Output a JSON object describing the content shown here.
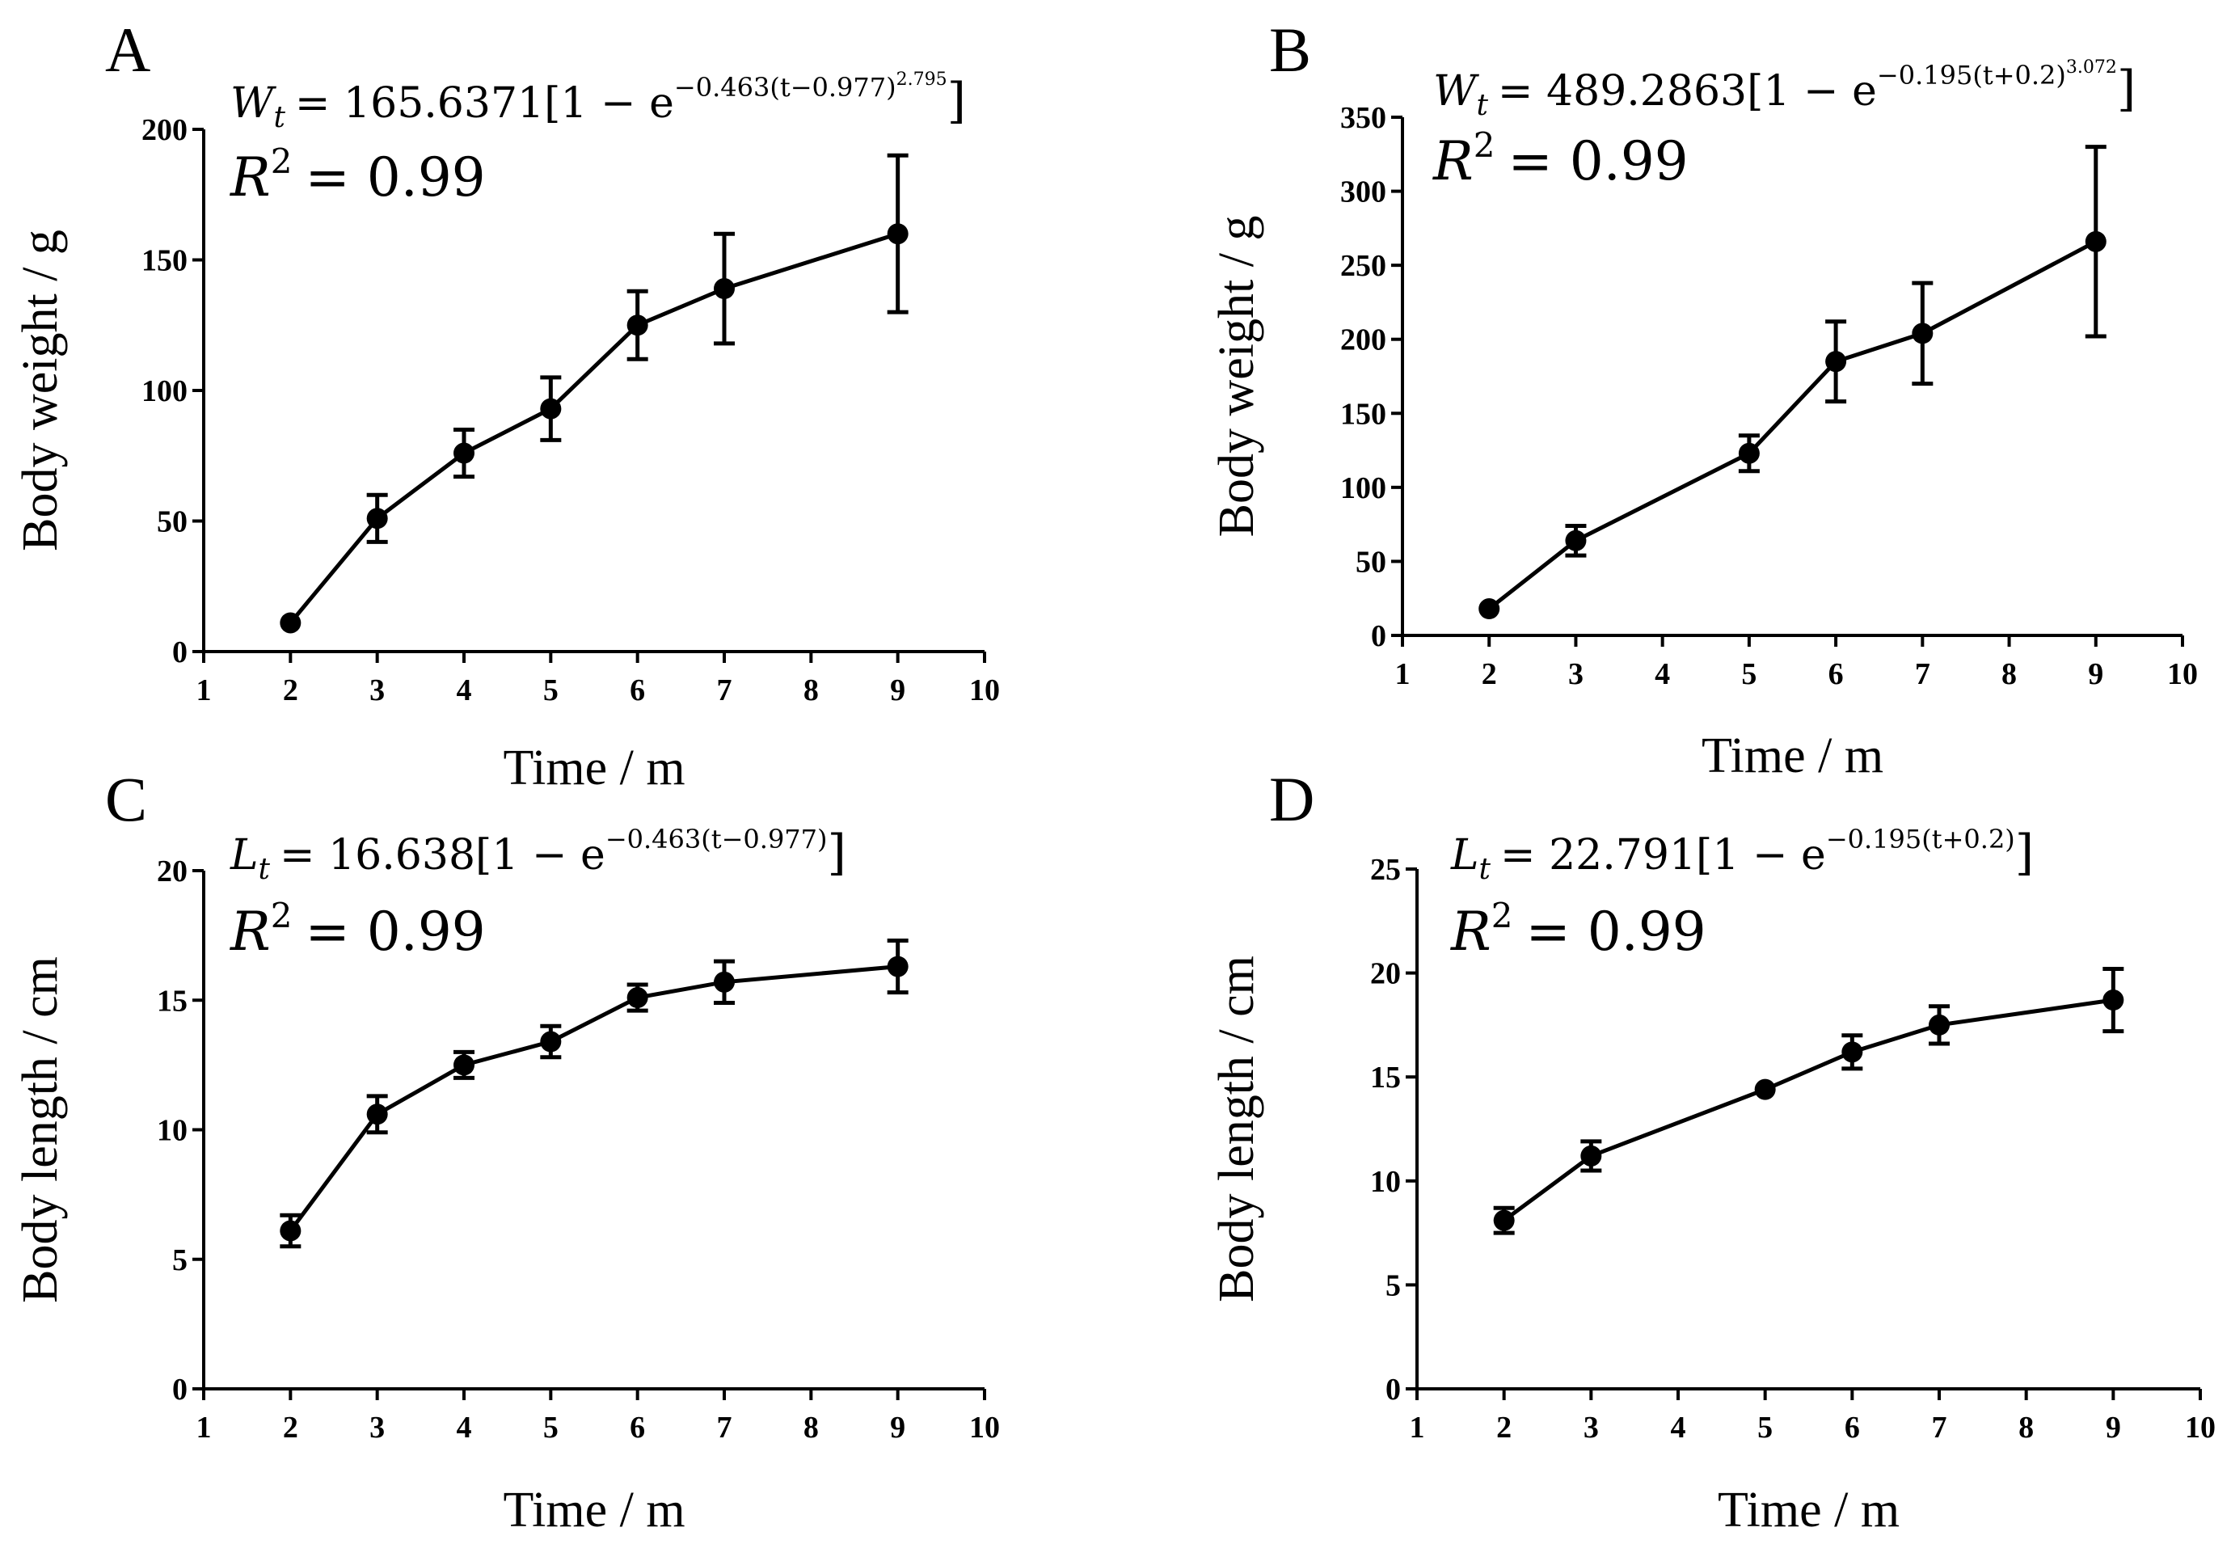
{
  "chart_data": [
    {
      "type": "line",
      "panel": "A",
      "title": "",
      "equation": {
        "lhs_symbol": "W",
        "lhs_sub": "t",
        "main": "= 165.6371[1 − e",
        "exponent": "−0.463(t−0.977)",
        "exponent_power": "2.795",
        "close": "]"
      },
      "r2": {
        "symbol": "R",
        "power": "2",
        "value": "= 0.99"
      },
      "xlabel": "Time / m",
      "ylabel": "Body weight / g",
      "xlim": [
        1,
        10
      ],
      "ylim": [
        0,
        200
      ],
      "xticks": [
        1,
        2,
        3,
        4,
        5,
        6,
        7,
        8,
        9,
        10
      ],
      "yticks": [
        0,
        50,
        100,
        150,
        200
      ],
      "grid": false,
      "series": [
        {
          "name": "Body weight",
          "x": [
            2,
            3,
            4,
            5,
            6,
            7,
            9
          ],
          "values": [
            11,
            51,
            76,
            93,
            125,
            139,
            160
          ],
          "errors": [
            0,
            9,
            9,
            12,
            13,
            21,
            30
          ]
        }
      ]
    },
    {
      "type": "line",
      "panel": "B",
      "title": "",
      "equation": {
        "lhs_symbol": "W",
        "lhs_sub": "t",
        "main": "= 489.2863[1 − e",
        "exponent": "−0.195(t+0.2)",
        "exponent_power": "3.072",
        "close": "]"
      },
      "r2": {
        "symbol": "R",
        "power": "2",
        "value": "= 0.99"
      },
      "xlabel": "Time / m",
      "ylabel": "Body weight / g",
      "xlim": [
        1,
        10
      ],
      "ylim": [
        0,
        350
      ],
      "xticks": [
        1,
        2,
        3,
        4,
        5,
        6,
        7,
        8,
        9,
        10
      ],
      "yticks": [
        0,
        50,
        100,
        150,
        200,
        250,
        300,
        350
      ],
      "grid": false,
      "series": [
        {
          "name": "Body weight",
          "x": [
            2,
            3,
            5,
            6,
            7,
            9
          ],
          "values": [
            18,
            64,
            123,
            185,
            204,
            266
          ],
          "errors": [
            0,
            10,
            12,
            27,
            34,
            64
          ]
        }
      ]
    },
    {
      "type": "line",
      "panel": "C",
      "title": "",
      "equation": {
        "lhs_symbol": "L",
        "lhs_sub": "t",
        "main": "= 16.638[1 − e",
        "exponent": "−0.463(t−0.977)",
        "exponent_power": "",
        "close": "]"
      },
      "r2": {
        "symbol": "R",
        "power": "2",
        "value": "= 0.99"
      },
      "xlabel": "Time / m",
      "ylabel": "Body length / cm",
      "xlim": [
        1,
        10
      ],
      "ylim": [
        0,
        20
      ],
      "xticks": [
        1,
        2,
        3,
        4,
        5,
        6,
        7,
        8,
        9,
        10
      ],
      "yticks": [
        0,
        5,
        10,
        15,
        20
      ],
      "grid": false,
      "series": [
        {
          "name": "Body length",
          "x": [
            2,
            3,
            4,
            5,
            6,
            7,
            9
          ],
          "values": [
            6.1,
            10.6,
            12.5,
            13.4,
            15.1,
            15.7,
            16.3
          ],
          "errors": [
            0.6,
            0.7,
            0.5,
            0.6,
            0.5,
            0.8,
            1.0
          ]
        }
      ]
    },
    {
      "type": "line",
      "panel": "D",
      "title": "",
      "equation": {
        "lhs_symbol": "L",
        "lhs_sub": "t",
        "main": "= 22.791[1 − e",
        "exponent": "−0.195(t+0.2)",
        "exponent_power": "",
        "close": "]"
      },
      "r2": {
        "symbol": "R",
        "power": "2",
        "value": "= 0.99"
      },
      "xlabel": "Time / m",
      "ylabel": "Body length / cm",
      "xlim": [
        1,
        10
      ],
      "ylim": [
        0,
        25
      ],
      "xticks": [
        1,
        2,
        3,
        4,
        5,
        6,
        7,
        8,
        9,
        10
      ],
      "yticks": [
        0,
        5,
        10,
        15,
        20,
        25
      ],
      "grid": false,
      "series": [
        {
          "name": "Body length",
          "x": [
            2,
            3,
            5,
            6,
            7,
            9
          ],
          "values": [
            8.1,
            11.2,
            14.4,
            16.2,
            17.5,
            18.7
          ],
          "errors": [
            0.6,
            0.7,
            0,
            0.8,
            0.9,
            1.5
          ]
        }
      ]
    }
  ]
}
